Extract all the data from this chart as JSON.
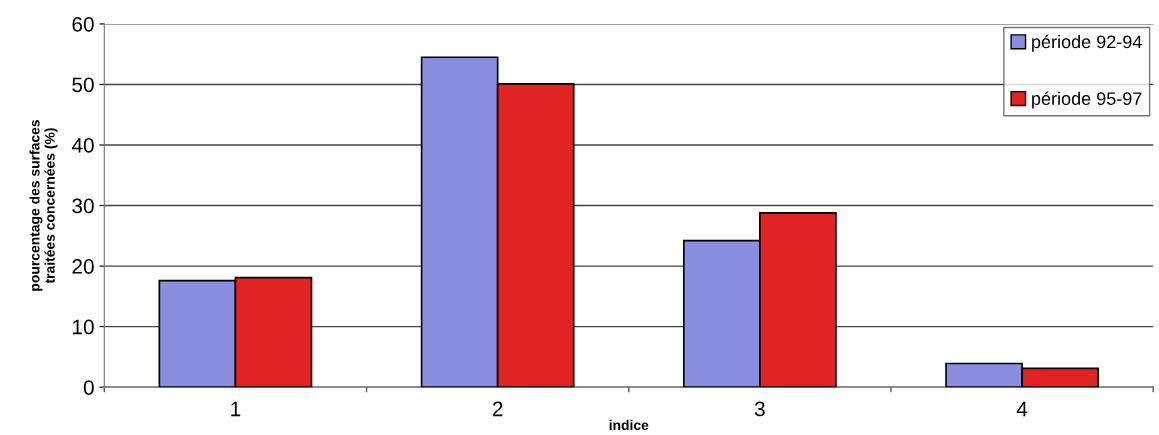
{
  "chart_data": {
    "type": "bar",
    "xlabel": "indice",
    "ylabel": "pourcentage des surfaces\ntraitées concernées (%)",
    "categories": [
      "1",
      "2",
      "3",
      "4"
    ],
    "series": [
      {
        "name": "période 92-94",
        "color": "#8a8ee0",
        "values": [
          17.6,
          54.5,
          24.2,
          3.9
        ]
      },
      {
        "name": "période 95-97",
        "color": "#e02424",
        "values": [
          18.1,
          50.1,
          28.8,
          3.1
        ]
      }
    ],
    "ylim": [
      0,
      60
    ],
    "yticks": [
      0,
      10,
      20,
      30,
      40,
      50,
      60
    ],
    "grid": "y",
    "legend": "top right"
  }
}
